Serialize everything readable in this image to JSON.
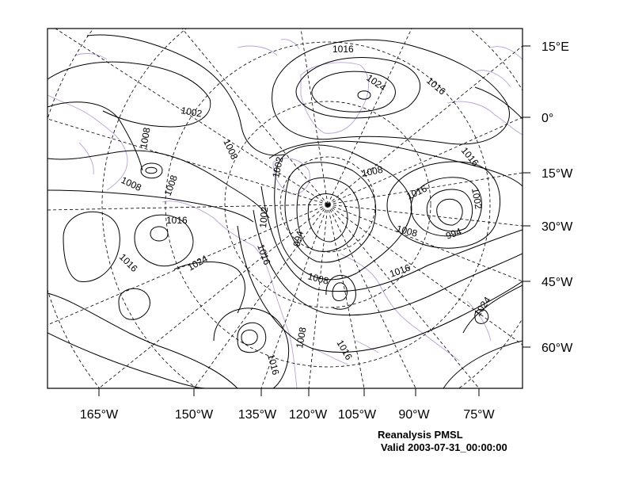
{
  "map": {
    "lon_labels": [
      "165°W",
      "150°W",
      "135°W",
      "120°W",
      "105°W",
      "90°W",
      "75°W"
    ],
    "lat_labels": [
      "15°E",
      "0°",
      "15°W",
      "30°W",
      "45°W",
      "60°W"
    ],
    "contour_labels": [
      "1016",
      "1024",
      "1016",
      "1002",
      "1008",
      "1008",
      "1016",
      "1008",
      "1002",
      "1008",
      "1008",
      "1016",
      "1002",
      "1002",
      "1016",
      "1008",
      "994",
      "994",
      "1008",
      "1016",
      "1024",
      "1016",
      "1016",
      "1008",
      "1016",
      "1016",
      "1024",
      "1024"
    ],
    "colors": {
      "contour": "#000000",
      "coastline": "#b9a3d9",
      "grid": "#000000",
      "frame": "#000000"
    }
  },
  "caption": {
    "line1": "Reanalysis PMSL",
    "line2": "Valid 2003-07-31_00:00:00"
  }
}
